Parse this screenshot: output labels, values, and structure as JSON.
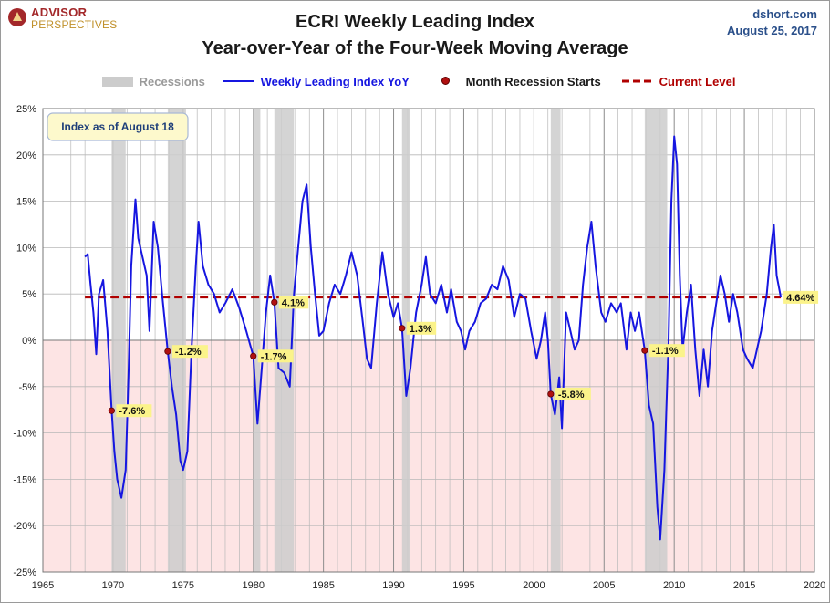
{
  "brand": {
    "name": "ADVISOR",
    "sub": "PERSPECTIVES"
  },
  "source": {
    "site": "dshort.com",
    "date": "August 25, 2017"
  },
  "colors": {
    "series": "#1616e0",
    "current": "#b00000",
    "recession": "#cccccc",
    "negative_zone": "#fde4e4",
    "marker": "#b01010",
    "label_bg": "#fbf38a"
  },
  "chart_data": {
    "type": "line",
    "title": "ECRI Weekly Leading Index",
    "subtitle": "Year-over-Year of the Four-Week Moving Average",
    "xlim": [
      1965,
      2020
    ],
    "ylim": [
      -25,
      25
    ],
    "x_ticks": [
      1965,
      1970,
      1975,
      1980,
      1985,
      1990,
      1995,
      2000,
      2005,
      2010,
      2015,
      2020
    ],
    "y_ticks": [
      -25,
      -20,
      -15,
      -10,
      -5,
      0,
      5,
      10,
      15,
      20,
      25
    ],
    "y_tick_labels": [
      "-25%",
      "-20%",
      "-15%",
      "-10%",
      "-5%",
      "0%",
      "5%",
      "10%",
      "15%",
      "20%",
      "25%"
    ],
    "grid": "on",
    "annotation_box": "Index as of August 18",
    "legend": {
      "placement": "top",
      "items": [
        "Recessions",
        "Weekly Leading Index YoY",
        "Month Recession Starts",
        "Current Level"
      ]
    },
    "recessions": [
      [
        1969.9,
        1970.9
      ],
      [
        1973.9,
        1975.2
      ],
      [
        1980.0,
        1980.5
      ],
      [
        1981.5,
        1982.9
      ],
      [
        1990.6,
        1991.2
      ],
      [
        2001.2,
        2001.9
      ],
      [
        2007.9,
        2009.5
      ]
    ],
    "current_level": {
      "value": 4.64,
      "label": "4.64%"
    },
    "recession_start_markers": [
      {
        "x": 1969.9,
        "y": -7.6,
        "label": "-7.6%"
      },
      {
        "x": 1973.9,
        "y": -1.2,
        "label": "-1.2%"
      },
      {
        "x": 1980.0,
        "y": -1.7,
        "label": "-1.7%"
      },
      {
        "x": 1981.5,
        "y": 4.1,
        "label": "4.1%"
      },
      {
        "x": 1990.6,
        "y": 1.3,
        "label": "1.3%"
      },
      {
        "x": 2001.2,
        "y": -5.8,
        "label": "-5.8%"
      },
      {
        "x": 2007.9,
        "y": -1.1,
        "label": "-1.1%"
      }
    ],
    "series": [
      {
        "name": "Weekly Leading Index YoY",
        "points": [
          [
            1968.0,
            9
          ],
          [
            1968.2,
            9.3
          ],
          [
            1968.4,
            6
          ],
          [
            1968.6,
            3
          ],
          [
            1968.8,
            -1.5
          ],
          [
            1969.0,
            5
          ],
          [
            1969.3,
            6.5
          ],
          [
            1969.6,
            1
          ],
          [
            1969.9,
            -7.6
          ],
          [
            1970.1,
            -12
          ],
          [
            1970.3,
            -15
          ],
          [
            1970.6,
            -17
          ],
          [
            1970.9,
            -14
          ],
          [
            1971.1,
            -4
          ],
          [
            1971.3,
            8
          ],
          [
            1971.6,
            15.2
          ],
          [
            1971.8,
            11
          ],
          [
            1972.1,
            9
          ],
          [
            1972.4,
            7
          ],
          [
            1972.6,
            1
          ],
          [
            1972.9,
            12.8
          ],
          [
            1973.2,
            10
          ],
          [
            1973.5,
            5
          ],
          [
            1973.9,
            -1.2
          ],
          [
            1974.2,
            -5
          ],
          [
            1974.5,
            -8
          ],
          [
            1974.8,
            -13
          ],
          [
            1975.0,
            -14
          ],
          [
            1975.3,
            -12
          ],
          [
            1975.6,
            -1
          ],
          [
            1975.9,
            8
          ],
          [
            1976.1,
            12.8
          ],
          [
            1976.4,
            8
          ],
          [
            1976.8,
            6
          ],
          [
            1977.2,
            5
          ],
          [
            1977.6,
            3
          ],
          [
            1978.0,
            4
          ],
          [
            1978.5,
            5.5
          ],
          [
            1979.0,
            3.5
          ],
          [
            1979.5,
            1
          ],
          [
            1980.0,
            -1.7
          ],
          [
            1980.3,
            -9
          ],
          [
            1980.6,
            -3
          ],
          [
            1980.9,
            3
          ],
          [
            1981.2,
            7
          ],
          [
            1981.5,
            4.1
          ],
          [
            1981.8,
            -3
          ],
          [
            1982.2,
            -3.5
          ],
          [
            1982.6,
            -5
          ],
          [
            1982.9,
            5
          ],
          [
            1983.2,
            10
          ],
          [
            1983.5,
            15
          ],
          [
            1983.8,
            16.8
          ],
          [
            1984.1,
            10
          ],
          [
            1984.4,
            5
          ],
          [
            1984.7,
            0.5
          ],
          [
            1985.0,
            1
          ],
          [
            1985.4,
            4
          ],
          [
            1985.8,
            6
          ],
          [
            1986.2,
            5
          ],
          [
            1986.6,
            7
          ],
          [
            1987.0,
            9.5
          ],
          [
            1987.4,
            7
          ],
          [
            1987.8,
            2
          ],
          [
            1988.1,
            -2
          ],
          [
            1988.4,
            -3
          ],
          [
            1988.8,
            4
          ],
          [
            1989.2,
            9.5
          ],
          [
            1989.6,
            5
          ],
          [
            1990.0,
            2.5
          ],
          [
            1990.3,
            4
          ],
          [
            1990.6,
            1.3
          ],
          [
            1990.9,
            -6
          ],
          [
            1991.2,
            -3
          ],
          [
            1991.6,
            3
          ],
          [
            1992.0,
            6
          ],
          [
            1992.3,
            9
          ],
          [
            1992.6,
            5
          ],
          [
            1993.0,
            4
          ],
          [
            1993.4,
            6
          ],
          [
            1993.8,
            3
          ],
          [
            1994.1,
            5.5
          ],
          [
            1994.5,
            2
          ],
          [
            1994.8,
            1
          ],
          [
            1995.1,
            -1
          ],
          [
            1995.4,
            1
          ],
          [
            1995.8,
            2
          ],
          [
            1996.2,
            4
          ],
          [
            1996.6,
            4.5
          ],
          [
            1997.0,
            6
          ],
          [
            1997.4,
            5.5
          ],
          [
            1997.8,
            8
          ],
          [
            1998.2,
            6.5
          ],
          [
            1998.6,
            2.5
          ],
          [
            1999.0,
            5
          ],
          [
            1999.4,
            4.5
          ],
          [
            1999.8,
            1
          ],
          [
            2000.2,
            -2
          ],
          [
            2000.5,
            0
          ],
          [
            2000.8,
            3
          ],
          [
            2001.0,
            0
          ],
          [
            2001.2,
            -5.8
          ],
          [
            2001.5,
            -8
          ],
          [
            2001.8,
            -4
          ],
          [
            2002.0,
            -9.5
          ],
          [
            2002.3,
            3
          ],
          [
            2002.6,
            1
          ],
          [
            2002.9,
            -1
          ],
          [
            2003.2,
            0
          ],
          [
            2003.5,
            6
          ],
          [
            2003.8,
            10
          ],
          [
            2004.1,
            12.8
          ],
          [
            2004.4,
            8
          ],
          [
            2004.8,
            3
          ],
          [
            2005.1,
            2
          ],
          [
            2005.5,
            4
          ],
          [
            2005.9,
            3
          ],
          [
            2006.2,
            4
          ],
          [
            2006.6,
            -1
          ],
          [
            2006.9,
            3
          ],
          [
            2007.2,
            1
          ],
          [
            2007.5,
            3
          ],
          [
            2007.9,
            -1.1
          ],
          [
            2008.2,
            -7
          ],
          [
            2008.5,
            -9
          ],
          [
            2008.8,
            -18
          ],
          [
            2009.0,
            -21.5
          ],
          [
            2009.3,
            -14
          ],
          [
            2009.6,
            0
          ],
          [
            2009.8,
            15
          ],
          [
            2010.0,
            22
          ],
          [
            2010.2,
            19
          ],
          [
            2010.4,
            7
          ],
          [
            2010.6,
            -1
          ],
          [
            2010.9,
            3
          ],
          [
            2011.2,
            6
          ],
          [
            2011.5,
            -1
          ],
          [
            2011.8,
            -6
          ],
          [
            2012.1,
            -1
          ],
          [
            2012.4,
            -5
          ],
          [
            2012.7,
            1
          ],
          [
            2013.0,
            4
          ],
          [
            2013.3,
            7
          ],
          [
            2013.6,
            5
          ],
          [
            2013.9,
            2
          ],
          [
            2014.2,
            5
          ],
          [
            2014.5,
            3
          ],
          [
            2014.9,
            -1
          ],
          [
            2015.2,
            -2
          ],
          [
            2015.6,
            -3
          ],
          [
            2015.9,
            -1
          ],
          [
            2016.2,
            1
          ],
          [
            2016.6,
            5
          ],
          [
            2016.9,
            10
          ],
          [
            2017.1,
            12.5
          ],
          [
            2017.3,
            7
          ],
          [
            2017.6,
            4.64
          ]
        ]
      }
    ]
  }
}
